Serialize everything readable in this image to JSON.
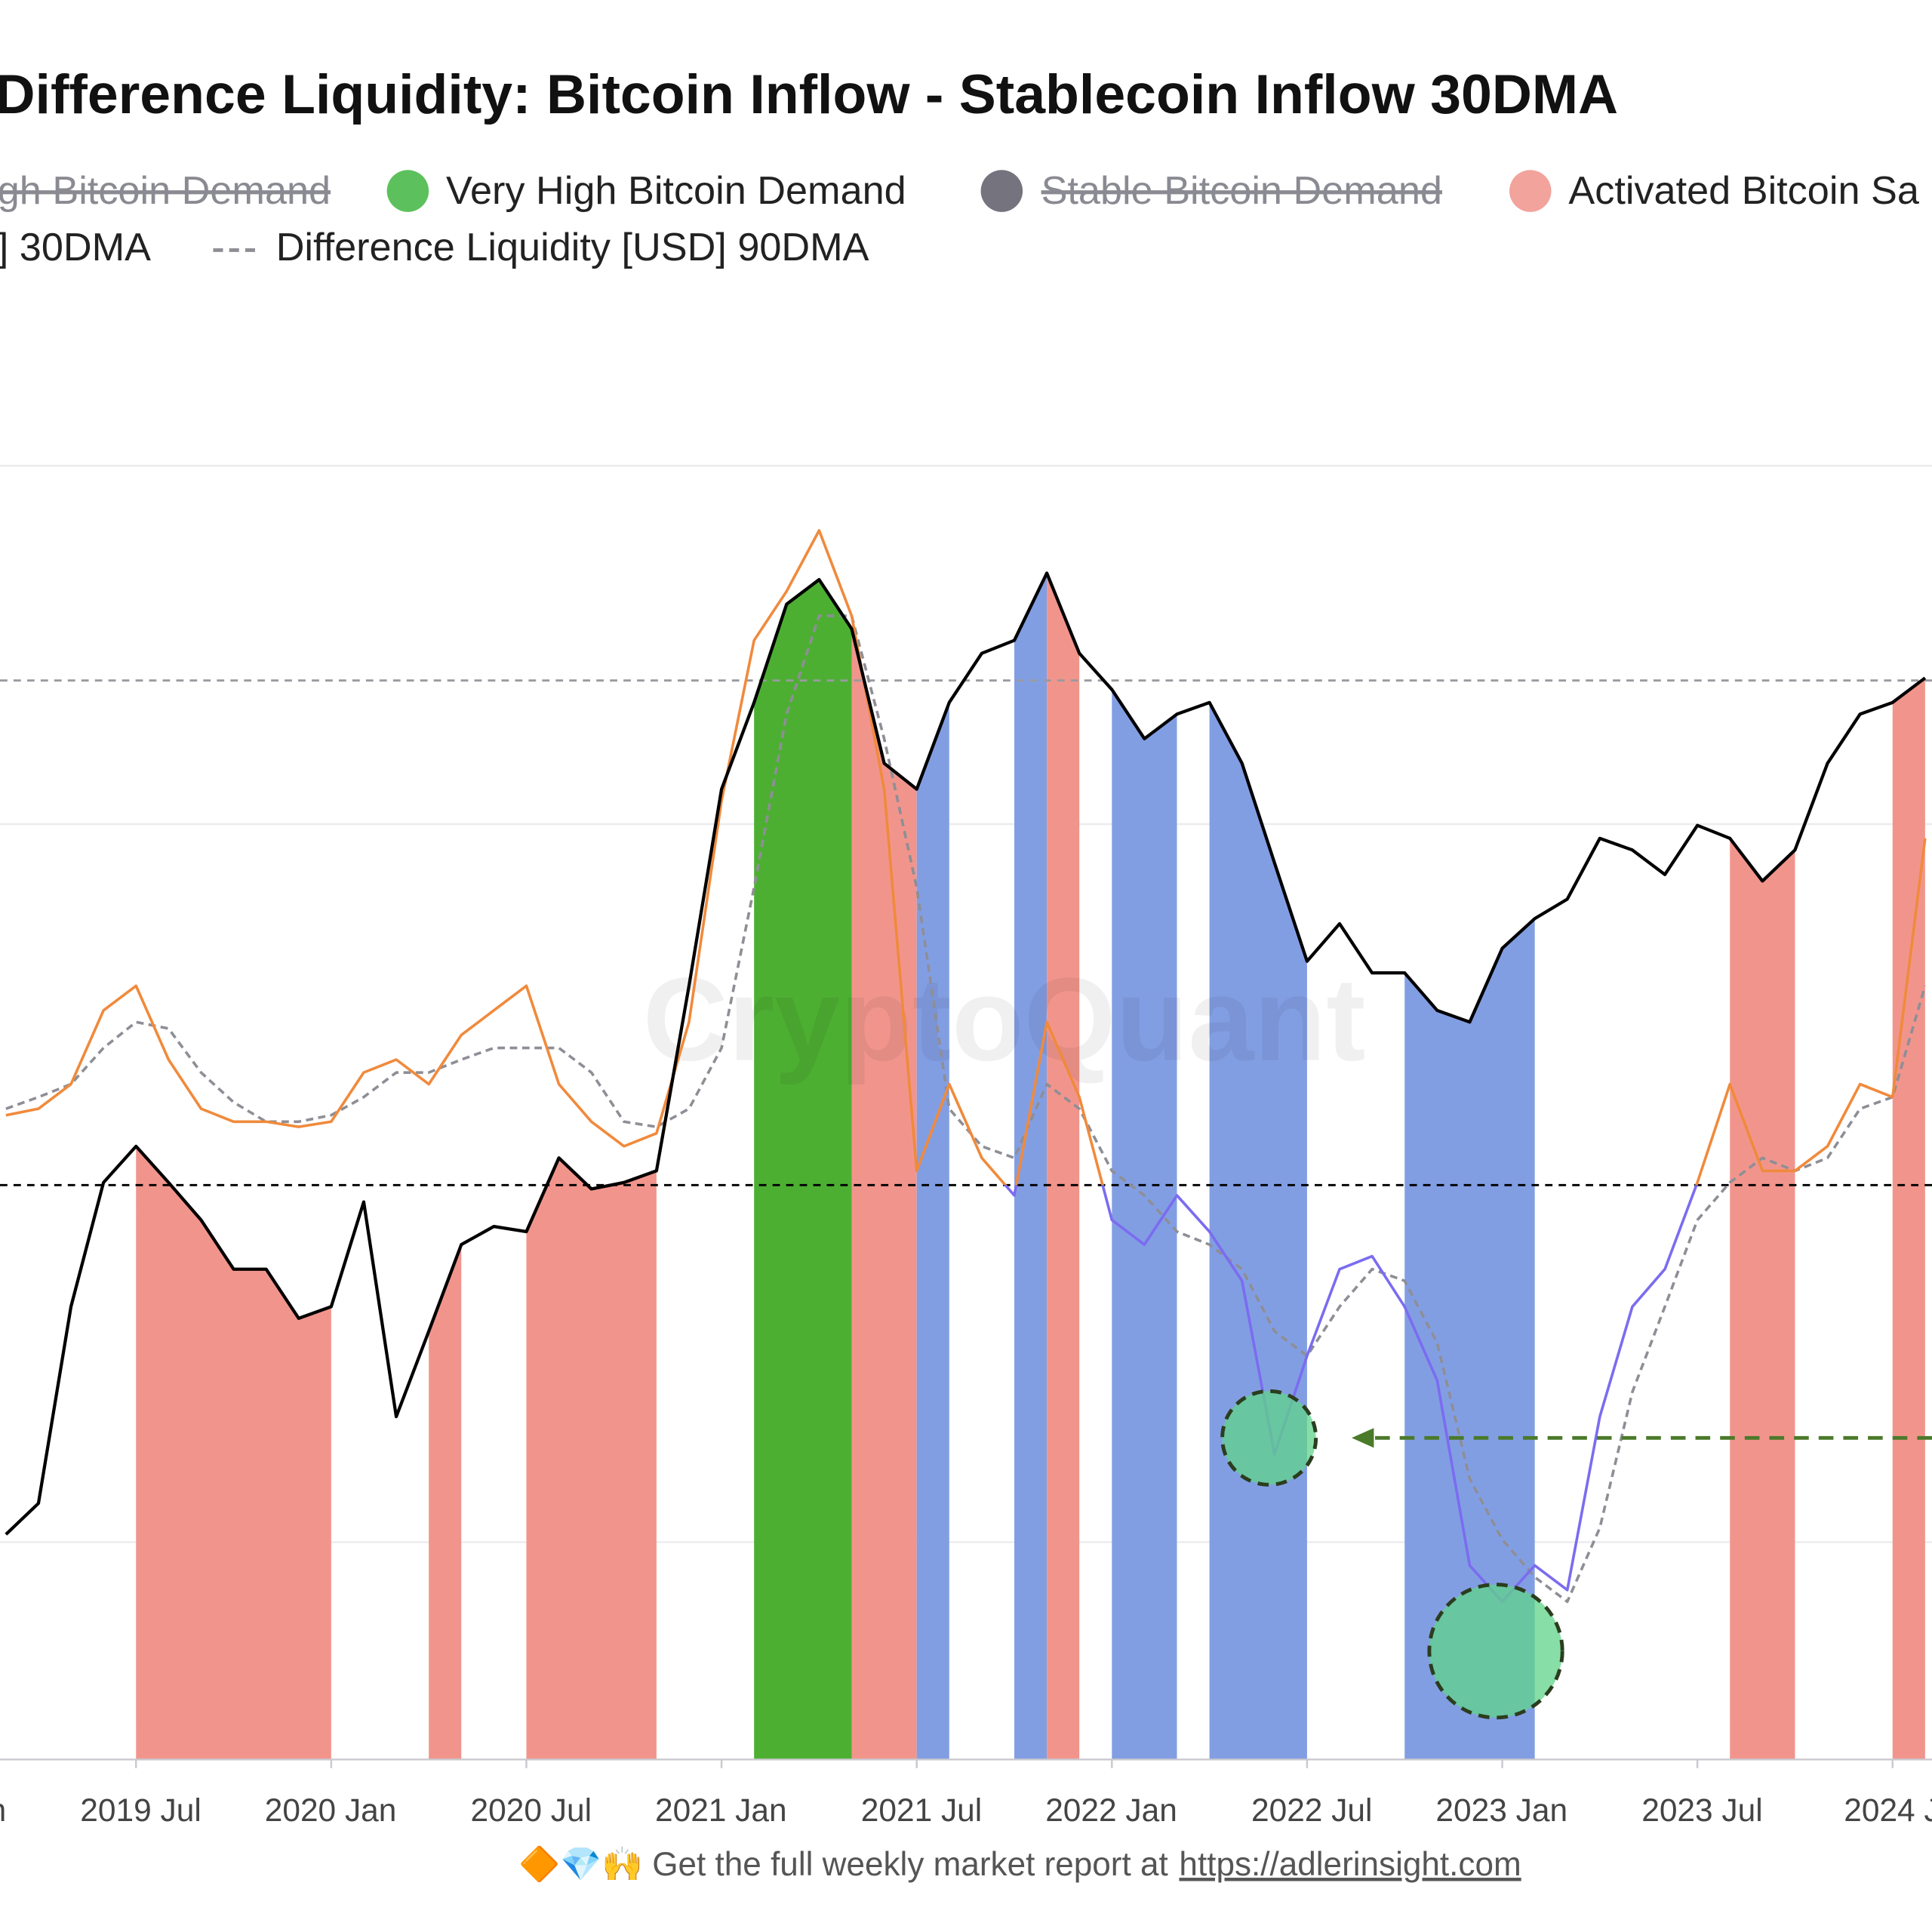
{
  "chart_data": {
    "type": "line",
    "title": "Difference Liquidity: Bitcoin Inflow - Stablecoin Inflow 30DMA",
    "watermark": "CryptoQuant",
    "legend": [
      {
        "label": "gh Bitcoin Demand",
        "hidden": true
      },
      {
        "label": "Very High Bitcoin Demand",
        "color": "#5cc15c"
      },
      {
        "label": "Stable Bitcoin Demand",
        "color": "#74737e",
        "hidden": true
      },
      {
        "label": "Activated Bitcoin Sa",
        "color": "#f2a39c"
      }
    ],
    "x": [
      "2019-03",
      "2019-04",
      "2019-05",
      "2019-06",
      "2019-07",
      "2019-08",
      "2019-09",
      "2019-10",
      "2019-11",
      "2019-12",
      "2020-01",
      "2020-02",
      "2020-03",
      "2020-04",
      "2020-05",
      "2020-06",
      "2020-07",
      "2020-08",
      "2020-09",
      "2020-10",
      "2020-11",
      "2020-12",
      "2021-01",
      "2021-02",
      "2021-03",
      "2021-04",
      "2021-05",
      "2021-06",
      "2021-07",
      "2021-08",
      "2021-09",
      "2021-10",
      "2021-11",
      "2021-12",
      "2022-01",
      "2022-02",
      "2022-03",
      "2022-04",
      "2022-05",
      "2022-06",
      "2022-07",
      "2022-08",
      "2022-09",
      "2022-10",
      "2022-11",
      "2022-12",
      "2023-01",
      "2023-02",
      "2023-03",
      "2023-04",
      "2023-05",
      "2023-06",
      "2023-07",
      "2023-08",
      "2023-09",
      "2023-10",
      "2023-11",
      "2023-12",
      "2024-01",
      "2024-02"
    ],
    "series": [
      {
        "name": "] 30DMA",
        "color": "#f08a3c",
        "color_below": "#7b6cf0",
        "values": [
          49.8,
          50.3,
          52.2,
          57.9,
          59.8,
          54.1,
          50.3,
          49.3,
          49.3,
          48.9,
          49.3,
          53.1,
          54.1,
          52.2,
          56.0,
          57.9,
          59.8,
          52.2,
          49.3,
          47.4,
          48.4,
          57.0,
          74.1,
          86.5,
          90.3,
          95.0,
          88.4,
          75.0,
          45.5,
          52.2,
          46.5,
          43.6,
          57.0,
          51.2,
          41.7,
          39.8,
          43.6,
          40.8,
          37.0,
          23.6,
          31.2,
          37.9,
          38.9,
          35.0,
          29.3,
          15.0,
          12.2,
          15.0,
          13.1,
          26.5,
          35.0,
          37.9,
          44.6,
          52.2,
          45.5,
          45.5,
          47.4,
          52.2,
          51.2,
          71.2
        ]
      },
      {
        "name": "Difference Liquidity [USD] 90DMA",
        "color": "#8e8e96",
        "dash": true,
        "values": [
          50.3,
          51.2,
          52.2,
          55.0,
          57.0,
          56.5,
          53.1,
          50.8,
          49.3,
          49.3,
          49.8,
          51.2,
          53.1,
          53.1,
          54.1,
          55.0,
          55.0,
          55.0,
          53.1,
          49.3,
          48.9,
          50.3,
          55.0,
          67.4,
          80.8,
          88.4,
          88.4,
          78.9,
          67.4,
          50.3,
          47.4,
          46.5,
          52.2,
          50.3,
          45.5,
          43.6,
          40.8,
          39.8,
          37.9,
          33.1,
          31.2,
          35.0,
          37.9,
          37.0,
          32.2,
          21.7,
          17.0,
          14.1,
          12.2,
          17.9,
          28.4,
          35.0,
          41.7,
          44.6,
          46.5,
          45.5,
          46.5,
          50.3,
          51.2,
          59.8
        ]
      },
      {
        "color": "#000000",
        "values": [
          17.4,
          19.8,
          35.0,
          44.6,
          47.4,
          44.6,
          41.7,
          37.9,
          37.9,
          34.1,
          35.0,
          43.1,
          26.5,
          33.1,
          39.8,
          41.2,
          40.8,
          46.5,
          44.1,
          44.6,
          45.5,
          59.8,
          75.0,
          81.7,
          89.3,
          91.2,
          87.4,
          77.0,
          75.0,
          81.7,
          85.5,
          86.5,
          91.7,
          85.5,
          82.7,
          78.9,
          80.8,
          81.7,
          77.0,
          69.3,
          61.7,
          64.6,
          60.8,
          60.8,
          57.9,
          57.0,
          62.7,
          65.0,
          66.5,
          71.2,
          70.3,
          68.4,
          72.2,
          71.2,
          67.9,
          70.3,
          77.0,
          80.8,
          81.7,
          83.6
        ]
      }
    ],
    "regions": [
      {
        "from": "2019-07",
        "to": "2020-01",
        "color": "#f1958c"
      },
      {
        "from": "2020-04",
        "to": "2020-05",
        "color": "#f1958c"
      },
      {
        "from": "2020-07",
        "to": "2020-11",
        "color": "#f1958c"
      },
      {
        "from": "2021-02",
        "to": "2021-05",
        "color": "#4daf32"
      },
      {
        "from": "2021-05",
        "to": "2021-07",
        "color": "#f1958c"
      },
      {
        "from": "2021-07",
        "to": "2021-08",
        "color": "#829ee3"
      },
      {
        "from": "2021-10",
        "to": "2021-11",
        "color": "#829ee3"
      },
      {
        "from": "2021-11",
        "to": "2021-12",
        "color": "#f1958c"
      },
      {
        "from": "2022-01",
        "to": "2022-03",
        "color": "#829ee3"
      },
      {
        "from": "2022-04",
        "to": "2022-07",
        "color": "#829ee3"
      },
      {
        "from": "2022-10",
        "to": "2023-02",
        "color": "#829ee3"
      },
      {
        "from": "2023-08",
        "to": "2023-10",
        "color": "#f1958c"
      },
      {
        "from": "2024-01",
        "to": "2024-02",
        "color": "#f1958c"
      }
    ],
    "xlim": [
      "2019-03",
      "2024-02"
    ],
    "ylim": [
      0,
      100
    ],
    "grid_values": [
      100,
      72.3,
      16.8
    ],
    "ref_lines": [
      {
        "value": 83.4,
        "color": "#9a9aa0"
      },
      {
        "value": 44.4,
        "color": "#000000"
      }
    ],
    "xticks": [
      {
        "value": "2019-01",
        "label": "n"
      },
      {
        "value": "2019-07",
        "label": "2019 Jul"
      },
      {
        "value": "2020-01",
        "label": "2020 Jan"
      },
      {
        "value": "2020-07",
        "label": "2020 Jul"
      },
      {
        "value": "2021-01",
        "label": "2021 Jan"
      },
      {
        "value": "2021-07",
        "label": "2021 Jul"
      },
      {
        "value": "2022-01",
        "label": "2022 Jan"
      },
      {
        "value": "2022-07",
        "label": "2022 Jul"
      },
      {
        "value": "2023-01",
        "label": "2023 Jan"
      },
      {
        "value": "2023-07",
        "label": "2023 Jul"
      },
      {
        "value": "2024-01",
        "label": "2024 Ja"
      }
    ]
  },
  "footer": {
    "text": "🔶💎🙌 Get the full weekly market report at",
    "link": "https://adlerinsight.com"
  }
}
